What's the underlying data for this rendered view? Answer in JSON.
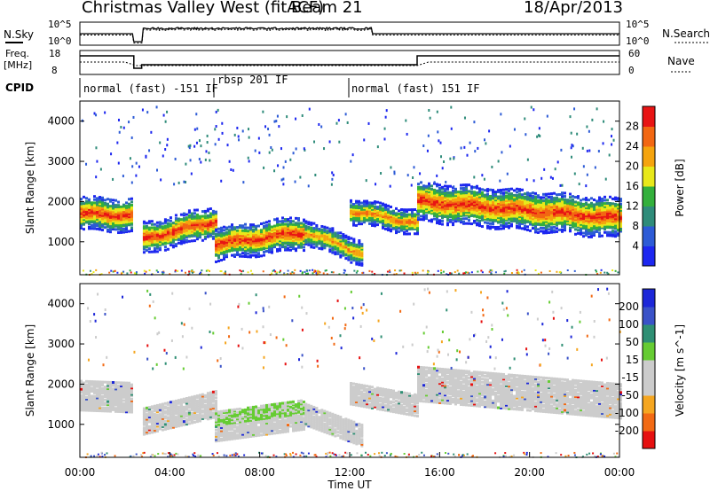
{
  "header": {
    "radar": "Christmas Valley West (fitACF)",
    "beam": "Beam 21",
    "date": "18/Apr/2013"
  },
  "noise_panel": {
    "left_label": "N.Sky",
    "right_label": "N.Search",
    "left_ticks": [
      "10^5",
      "10^0"
    ],
    "right_ticks": [
      "10^5",
      "10^0"
    ]
  },
  "freq_panel": {
    "left_label_1": "Freq.",
    "left_label_2": "[MHz]",
    "right_label": "Nave",
    "left_ticks": [
      "18",
      "8"
    ],
    "right_ticks": [
      "60",
      "0"
    ]
  },
  "cpid": {
    "label": "CPID",
    "segments": [
      {
        "start_h": 0,
        "end_h": 6.0,
        "name": "normal (fast) -151 IF"
      },
      {
        "start_h": 6.0,
        "end_h": 12.0,
        "name": "rbsp 201 IF"
      },
      {
        "start_h": 12.0,
        "end_h": 24.0,
        "name": "normal (fast) 151 IF"
      }
    ]
  },
  "x_axis": {
    "label": "Time UT",
    "ticks": [
      "00:00",
      "04:00",
      "08:00",
      "12:00",
      "16:00",
      "20:00",
      "00:00"
    ]
  },
  "colors": {
    "power": [
      "#1d27f0",
      "#2d5bd6",
      "#2f8c7a",
      "#33b03c",
      "#e8e81a",
      "#f5a40e",
      "#f26712",
      "#e81414"
    ],
    "velocity": [
      "#e61010",
      "#f26a14",
      "#f5a620",
      "#cccccc",
      "#cccccc",
      "#66cc33",
      "#2f8f74",
      "#3a52c8",
      "#1d27d8"
    ]
  },
  "chart_data": [
    {
      "type": "heatmap",
      "title": "Power",
      "ylabel": "Slant Range [km]",
      "yticks": [
        "1000",
        "2000",
        "3000",
        "4000"
      ],
      "ylim": [
        180,
        4500
      ],
      "xlim": [
        0,
        24
      ],
      "colorbar": {
        "label": "Power [dB]",
        "ticks": [
          "4",
          "8",
          "12",
          "16",
          "20",
          "24",
          "28"
        ],
        "range": [
          0,
          32
        ]
      },
      "bands": [
        {
          "start_h": 0.0,
          "end_h": 2.3,
          "center_km": [
            1750,
            1700
          ],
          "width_km": 520,
          "peak_db": 30
        },
        {
          "start_h": 2.8,
          "end_h": 6.0,
          "center_km": [
            1120,
            1550
          ],
          "width_km": 480,
          "peak_db": 30
        },
        {
          "start_h": 6.0,
          "end_h": 10.0,
          "center_km": [
            980,
            1280
          ],
          "width_km": 520,
          "peak_db": 30
        },
        {
          "start_h": 10.0,
          "end_h": 12.5,
          "center_km": [
            1280,
            760
          ],
          "width_km": 380,
          "peak_db": 24
        },
        {
          "start_h": 12.0,
          "end_h": 15.0,
          "center_km": [
            1800,
            1500
          ],
          "width_km": 380,
          "peak_db": 26
        },
        {
          "start_h": 15.0,
          "end_h": 24.0,
          "center_km": [
            2050,
            1620
          ],
          "width_km": 620,
          "peak_db": 30
        }
      ]
    },
    {
      "type": "heatmap",
      "title": "Velocity",
      "ylabel": "Slant Range [km]",
      "yticks": [
        "1000",
        "2000",
        "3000",
        "4000"
      ],
      "ylim": [
        180,
        4500
      ],
      "xlim": [
        0,
        24
      ],
      "colorbar": {
        "label": "Velocity [m s^-1]",
        "ticks": [
          "-200",
          "-100",
          "-50",
          "-15",
          "15",
          "50",
          "100",
          "200"
        ],
        "range": [
          -250,
          250
        ]
      }
    }
  ]
}
